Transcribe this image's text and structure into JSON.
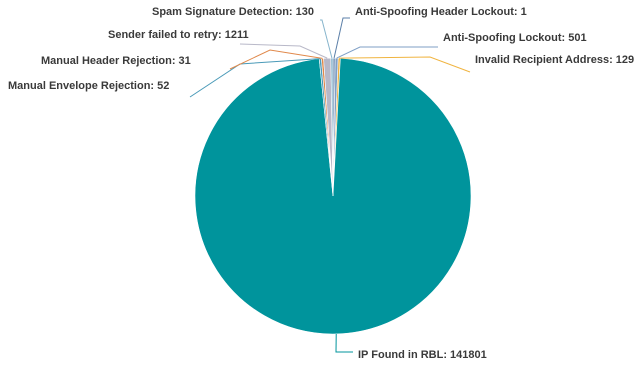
{
  "chart_data": {
    "type": "pie",
    "title": "",
    "slices": [
      {
        "label": "Anti-Spoofing Header Lockout",
        "value": 1,
        "display": "Anti-Spoofing Header Lockout: 1",
        "color": "#5b7fa8"
      },
      {
        "label": "Anti-Spoofing Lockout",
        "value": 501,
        "display": "Anti-Spoofing Lockout: 501",
        "color": "#7f9fc6"
      },
      {
        "label": "Invalid Recipient Address",
        "value": 129,
        "display": "Invalid Recipient Address: 129",
        "color": "#f0b440"
      },
      {
        "label": "IP Found in RBL",
        "value": 141801,
        "display": "IP Found in RBL: 141801",
        "color": "#00949c"
      },
      {
        "label": "Manual Envelope Rejection",
        "value": 52,
        "display": "Manual Envelope Rejection: 52",
        "color": "#4a9ab8"
      },
      {
        "label": "Manual Header Rejection",
        "value": 31,
        "display": "Manual Header Rejection: 31",
        "color": "#e0884a"
      },
      {
        "label": "Sender failed to retry",
        "value": 1211,
        "display": "Sender failed to retry: 1211",
        "color": "#b8b8c8"
      },
      {
        "label": "Spam Signature Detection",
        "value": 130,
        "display": "Spam Signature Detection: 130",
        "color": "#86b4cc"
      }
    ],
    "legend": "none"
  }
}
